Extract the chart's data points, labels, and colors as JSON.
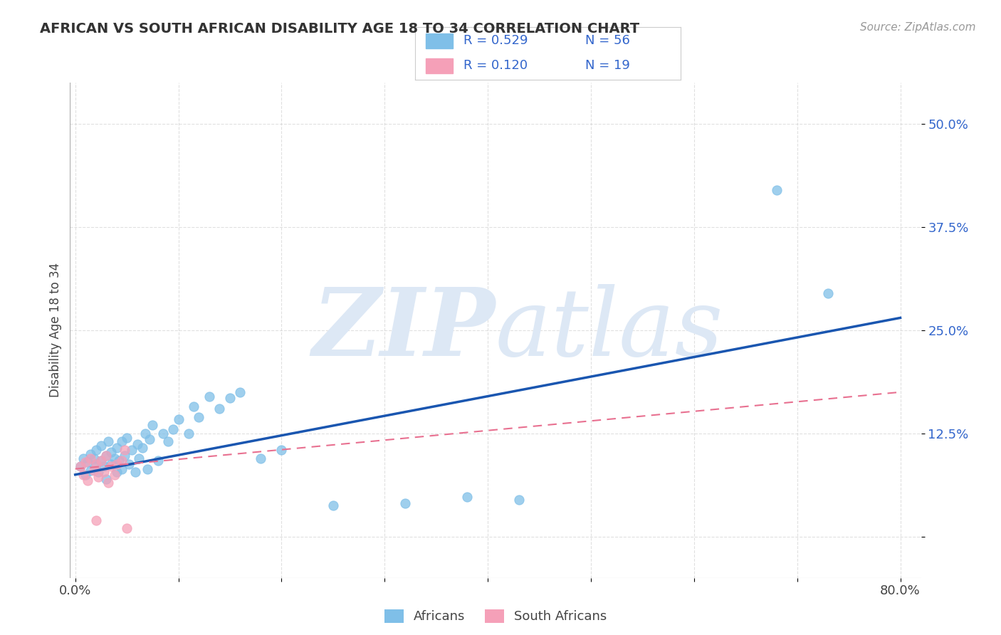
{
  "title": "AFRICAN VS SOUTH AFRICAN DISABILITY AGE 18 TO 34 CORRELATION CHART",
  "source": "Source: ZipAtlas.com",
  "ylabel": "Disability Age 18 to 34",
  "xlim": [
    -0.005,
    0.82
  ],
  "ylim": [
    -0.05,
    0.55
  ],
  "xtick_positions": [
    0.0,
    0.1,
    0.2,
    0.3,
    0.4,
    0.5,
    0.6,
    0.7,
    0.8
  ],
  "xticklabels": [
    "0.0%",
    "",
    "",
    "",
    "",
    "",
    "",
    "",
    "80.0%"
  ],
  "ytick_positions": [
    0.0,
    0.125,
    0.25,
    0.375,
    0.5
  ],
  "yticklabels": [
    "",
    "12.5%",
    "25.0%",
    "37.5%",
    "50.0%"
  ],
  "watermark_zip": "ZIP",
  "watermark_atlas": "atlas",
  "legend_R1": "R = 0.529",
  "legend_N1": "N = 56",
  "legend_R2": "R = 0.120",
  "legend_N2": "N = 19",
  "legend_label1": "Africans",
  "legend_label2": "South Africans",
  "color_blue": "#7fbfe8",
  "color_blue_line": "#1a56b0",
  "color_pink": "#f5a0b8",
  "color_pink_line": "#e87090",
  "color_text_blue": "#3366cc",
  "color_watermark": "#dde8f5",
  "color_grid": "#cccccc",
  "africans_x": [
    0.005,
    0.008,
    0.01,
    0.012,
    0.015,
    0.015,
    0.018,
    0.02,
    0.02,
    0.022,
    0.025,
    0.025,
    0.028,
    0.03,
    0.03,
    0.032,
    0.035,
    0.035,
    0.038,
    0.04,
    0.04,
    0.042,
    0.045,
    0.045,
    0.048,
    0.05,
    0.052,
    0.055,
    0.058,
    0.06,
    0.062,
    0.065,
    0.068,
    0.07,
    0.072,
    0.075,
    0.08,
    0.085,
    0.09,
    0.095,
    0.1,
    0.11,
    0.115,
    0.12,
    0.13,
    0.14,
    0.15,
    0.16,
    0.18,
    0.2,
    0.25,
    0.32,
    0.38,
    0.43,
    0.68,
    0.73
  ],
  "africans_y": [
    0.085,
    0.095,
    0.075,
    0.09,
    0.1,
    0.08,
    0.095,
    0.088,
    0.105,
    0.078,
    0.092,
    0.11,
    0.085,
    0.098,
    0.07,
    0.115,
    0.088,
    0.102,
    0.095,
    0.108,
    0.078,
    0.092,
    0.115,
    0.082,
    0.098,
    0.12,
    0.088,
    0.105,
    0.078,
    0.112,
    0.095,
    0.108,
    0.125,
    0.082,
    0.118,
    0.135,
    0.092,
    0.125,
    0.115,
    0.13,
    0.142,
    0.125,
    0.158,
    0.145,
    0.17,
    0.155,
    0.168,
    0.175,
    0.095,
    0.105,
    0.038,
    0.04,
    0.048,
    0.045,
    0.42,
    0.295
  ],
  "south_africans_x": [
    0.005,
    0.008,
    0.01,
    0.012,
    0.015,
    0.018,
    0.02,
    0.022,
    0.025,
    0.028,
    0.03,
    0.032,
    0.035,
    0.038,
    0.04,
    0.045,
    0.048,
    0.05,
    0.02
  ],
  "south_africans_y": [
    0.085,
    0.075,
    0.09,
    0.068,
    0.095,
    0.08,
    0.088,
    0.072,
    0.092,
    0.078,
    0.098,
    0.065,
    0.085,
    0.075,
    0.088,
    0.092,
    0.105,
    0.01,
    0.02
  ],
  "blue_line_x": [
    0.0,
    0.8
  ],
  "blue_line_y": [
    0.075,
    0.265
  ],
  "pink_line_x": [
    0.0,
    0.8
  ],
  "pink_line_y": [
    0.082,
    0.175
  ]
}
